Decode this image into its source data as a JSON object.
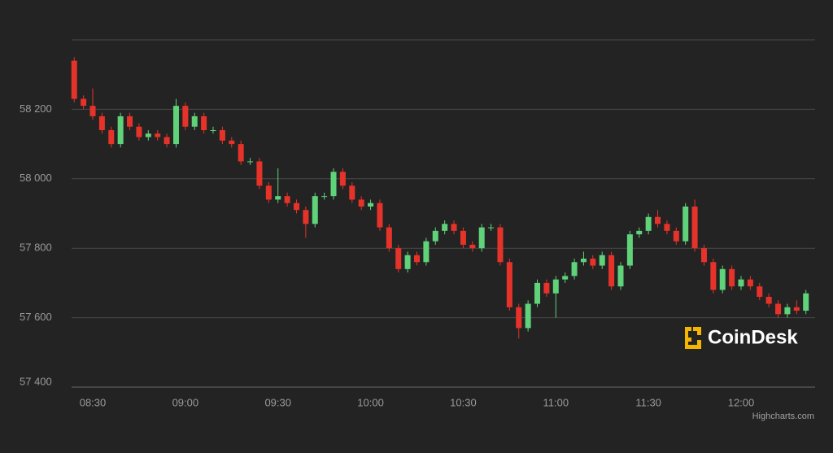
{
  "chart_data": {
    "type": "candlestick",
    "x": [
      "08:24",
      "08:27",
      "08:30",
      "08:33",
      "08:36",
      "08:39",
      "08:42",
      "08:45",
      "08:48",
      "08:51",
      "08:54",
      "08:57",
      "09:00",
      "09:03",
      "09:06",
      "09:09",
      "09:12",
      "09:15",
      "09:18",
      "09:21",
      "09:24",
      "09:27",
      "09:30",
      "09:33",
      "09:36",
      "09:39",
      "09:42",
      "09:45",
      "09:48",
      "09:51",
      "09:54",
      "09:57",
      "10:00",
      "10:03",
      "10:06",
      "10:09",
      "10:12",
      "10:15",
      "10:18",
      "10:21",
      "10:24",
      "10:27",
      "10:30",
      "10:33",
      "10:36",
      "10:39",
      "10:42",
      "10:45",
      "10:48",
      "10:51",
      "10:54",
      "10:57",
      "11:00",
      "11:03",
      "11:06",
      "11:09",
      "11:12",
      "11:15",
      "11:18",
      "11:21",
      "11:24",
      "11:27",
      "11:30",
      "11:33",
      "11:36",
      "11:39",
      "11:42",
      "11:45",
      "11:48",
      "11:51",
      "11:54",
      "11:57",
      "12:00",
      "12:03",
      "12:06",
      "12:09",
      "12:12",
      "12:15",
      "12:18",
      "12:21"
    ],
    "open": [
      58340,
      58230,
      58210,
      58180,
      58140,
      58100,
      58180,
      58150,
      58120,
      58130,
      58120,
      58100,
      58210,
      58150,
      58180,
      58140,
      58140,
      58110,
      58100,
      58050,
      58050,
      57980,
      57940,
      57950,
      57930,
      57910,
      57870,
      57950,
      57950,
      58020,
      57980,
      57940,
      57920,
      57930,
      57860,
      57800,
      57740,
      57780,
      57760,
      57820,
      57850,
      57870,
      57850,
      57810,
      57800,
      57860,
      57860,
      57760,
      57630,
      57570,
      57640,
      57700,
      57670,
      57710,
      57720,
      57760,
      57770,
      57750,
      57780,
      57690,
      57750,
      57840,
      57850,
      57890,
      57870,
      57850,
      57820,
      57920,
      57800,
      57760,
      57680,
      57740,
      57690,
      57710,
      57690,
      57660,
      57640,
      57610,
      57630,
      57620
    ],
    "high": [
      58350,
      58240,
      58260,
      58190,
      58150,
      58190,
      58190,
      58160,
      58140,
      58140,
      58130,
      58230,
      58220,
      58190,
      58190,
      58150,
      58150,
      58120,
      58110,
      58060,
      58060,
      57990,
      58030,
      57960,
      57940,
      57920,
      57960,
      57960,
      58030,
      58030,
      57990,
      57950,
      57940,
      57940,
      57870,
      57810,
      57790,
      57790,
      57830,
      57860,
      57880,
      57880,
      57860,
      57820,
      57870,
      57870,
      57870,
      57770,
      57640,
      57650,
      57710,
      57710,
      57720,
      57730,
      57770,
      57790,
      57780,
      57790,
      57790,
      57760,
      57850,
      57860,
      57900,
      57910,
      57880,
      57860,
      57930,
      57940,
      57810,
      57770,
      57750,
      57750,
      57720,
      57720,
      57700,
      57670,
      57650,
      57640,
      57650,
      57680
    ],
    "low": [
      58220,
      58200,
      58170,
      58130,
      58090,
      58090,
      58140,
      58110,
      58110,
      58110,
      58090,
      58090,
      58140,
      58140,
      58130,
      58130,
      58100,
      58090,
      58040,
      58040,
      57970,
      57930,
      57930,
      57920,
      57900,
      57830,
      57860,
      57940,
      57940,
      57970,
      57930,
      57910,
      57910,
      57850,
      57790,
      57730,
      57730,
      57750,
      57750,
      57810,
      57840,
      57840,
      57800,
      57790,
      57790,
      57850,
      57750,
      57620,
      57540,
      57560,
      57630,
      57660,
      57600,
      57700,
      57710,
      57750,
      57740,
      57740,
      57680,
      57680,
      57740,
      57830,
      57840,
      57860,
      57840,
      57810,
      57810,
      57790,
      57750,
      57670,
      57670,
      57680,
      57680,
      57680,
      57650,
      57630,
      57600,
      57600,
      57610,
      57610
    ],
    "close": [
      58230,
      58210,
      58180,
      58140,
      58100,
      58180,
      58150,
      58120,
      58130,
      58120,
      58100,
      58210,
      58150,
      58180,
      58140,
      58140,
      58110,
      58100,
      58050,
      58050,
      57980,
      57940,
      57950,
      57930,
      57910,
      57870,
      57950,
      57950,
      58020,
      57980,
      57940,
      57920,
      57930,
      57860,
      57800,
      57740,
      57780,
      57760,
      57820,
      57850,
      57870,
      57850,
      57810,
      57800,
      57860,
      57860,
      57760,
      57630,
      57570,
      57640,
      57700,
      57670,
      57710,
      57720,
      57760,
      57770,
      57750,
      57780,
      57690,
      57750,
      57840,
      57850,
      57890,
      57870,
      57850,
      57820,
      57920,
      57800,
      57760,
      57680,
      57740,
      57690,
      57710,
      57690,
      57660,
      57640,
      57610,
      57630,
      57620,
      57670
    ],
    "up_color": "#5fd27a",
    "down_color": "#e5332a",
    "ylim": [
      57400,
      58400
    ],
    "yticks": [
      {
        "value": 57400,
        "label": "57 400"
      },
      {
        "value": 57600,
        "label": "57 600"
      },
      {
        "value": 57800,
        "label": "57 800"
      },
      {
        "value": 58000,
        "label": "58 000"
      },
      {
        "value": 58200,
        "label": "58 200"
      }
    ],
    "xticks": [
      "08:30",
      "09:00",
      "09:30",
      "10:00",
      "10:30",
      "11:00",
      "11:30",
      "12:00"
    ],
    "grid": true,
    "logo": "CoinDesk",
    "credits": "Highcharts.com"
  }
}
